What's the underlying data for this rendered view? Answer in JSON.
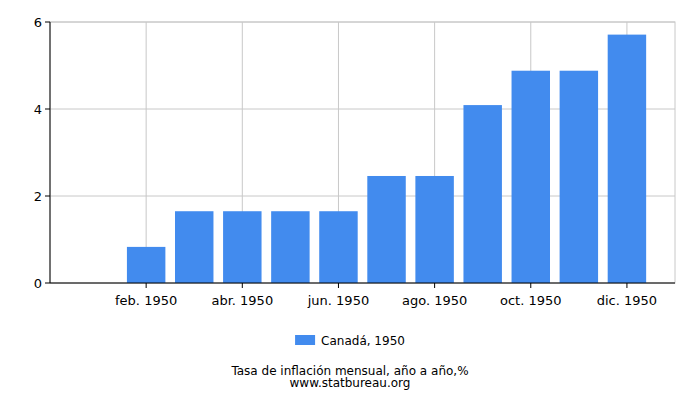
{
  "chart_data": {
    "type": "bar",
    "title": "Tasa de inflación mensual, año a año,%",
    "subtitle": "www.statbureau.org",
    "categories": [
      null,
      "feb. 1950",
      null,
      "abr. 1950",
      null,
      "jun. 1950",
      null,
      "ago. 1950",
      null,
      "oct. 1950",
      null,
      "dic. 1950"
    ],
    "series": [
      {
        "name": "Canadá, 1950",
        "color": "#428bee",
        "values": [
          null,
          0.83,
          1.65,
          1.65,
          1.65,
          1.65,
          2.46,
          2.46,
          4.09,
          4.88,
          4.88,
          5.71
        ]
      }
    ],
    "ylim": [
      0,
      6
    ],
    "yticks": [
      0,
      2,
      4,
      6
    ],
    "grid": true,
    "legend": "bottom"
  }
}
